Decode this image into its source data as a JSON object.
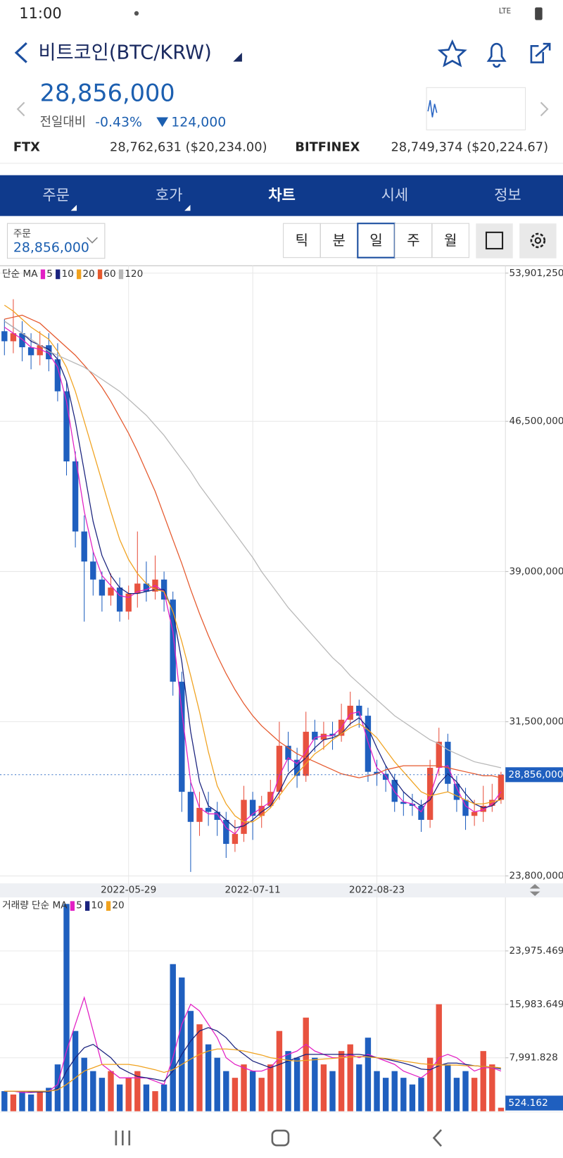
{
  "status_bar": {
    "time": "11:00",
    "network": "LTE"
  },
  "header": {
    "title": "비트코인(BTC/KRW)",
    "price": "28,856,000",
    "change_label": "전일대비",
    "change_percent": "-0.43%",
    "change_amount": "124,000"
  },
  "exchanges": [
    {
      "name": "FTX",
      "quote": "28,762,631 ($20,234.00)"
    },
    {
      "name": "BITFINEX",
      "quote": "28,749,374 ($20,224.67)"
    }
  ],
  "tabs": {
    "items": [
      "주문",
      "호가",
      "차트",
      "시세",
      "정보"
    ],
    "active": 2
  },
  "order_box": {
    "label": "주문",
    "price": "28,856,000"
  },
  "periods": {
    "items": [
      "틱",
      "분",
      "일",
      "주",
      "월"
    ],
    "active": 2
  },
  "chart_data": [
    {
      "type": "candlestick",
      "legend_title": "단순 MA",
      "grid": true,
      "up_color": "#e8523f",
      "down_color": "#1f5fbf",
      "categories": [
        null,
        null,
        null,
        null,
        null,
        null,
        null,
        null,
        null,
        null,
        null,
        null,
        null,
        null,
        "2022-05-29",
        null,
        null,
        null,
        null,
        null,
        null,
        null,
        null,
        null,
        null,
        null,
        null,
        null,
        "2022-07-11",
        null,
        null,
        null,
        null,
        null,
        null,
        null,
        null,
        null,
        null,
        null,
        null,
        null,
        "2022-08-23",
        null,
        null,
        null,
        null,
        null,
        null,
        null,
        null,
        null,
        null,
        null,
        null,
        null,
        null
      ],
      "open": [
        51000000,
        50500000,
        50900000,
        50200000,
        49800000,
        50300000,
        49600000,
        48000000,
        44500000,
        41000000,
        39500000,
        38600000,
        37800000,
        38200000,
        37000000,
        37900000,
        38400000,
        38000000,
        38600000,
        37600000,
        33500000,
        28000000,
        26500000,
        27200000,
        27000000,
        26600000,
        25400000,
        25900000,
        27600000,
        26800000,
        27300000,
        28000000,
        30300000,
        29600000,
        28800000,
        31000000,
        30600000,
        30900000,
        30800000,
        31600000,
        32300000,
        31800000,
        29000000,
        28900000,
        28600000,
        27500000,
        27400000,
        27300000,
        26600000,
        29200000,
        30500000,
        28400000,
        27600000,
        26800000,
        27000000,
        27300000,
        27600000
      ],
      "high": [
        51600000,
        52600000,
        51500000,
        50900000,
        51000000,
        50900000,
        50400000,
        48500000,
        45000000,
        41800000,
        40000000,
        39000000,
        38900000,
        38700000,
        38300000,
        41000000,
        39500000,
        39800000,
        39000000,
        38000000,
        34000000,
        28600000,
        28000000,
        28000000,
        27500000,
        27000000,
        26600000,
        28300000,
        28000000,
        27800000,
        28600000,
        31500000,
        31000000,
        30200000,
        32000000,
        31600000,
        31500000,
        31500000,
        32400000,
        33000000,
        32600000,
        32200000,
        29600000,
        29300000,
        28900000,
        28000000,
        27900000,
        27600000,
        29600000,
        31200000,
        30900000,
        28800000,
        28200000,
        27600000,
        28300000,
        28400000,
        29000000
      ],
      "low": [
        49800000,
        49900000,
        49500000,
        49100000,
        49300000,
        49000000,
        47500000,
        43800000,
        40200000,
        36500000,
        37800000,
        37000000,
        37300000,
        36500000,
        36600000,
        37200000,
        37500000,
        37600000,
        37000000,
        32800000,
        27000000,
        24000000,
        25800000,
        26300000,
        25800000,
        24700000,
        25000000,
        25500000,
        25600000,
        26200000,
        27200000,
        27600000,
        29000000,
        28200000,
        28500000,
        30000000,
        30100000,
        30100000,
        30500000,
        31300000,
        31200000,
        28500000,
        28300000,
        28000000,
        27000000,
        26800000,
        26800000,
        26000000,
        26200000,
        28800000,
        28000000,
        27000000,
        26100000,
        26300000,
        26500000,
        27000000,
        27400000
      ],
      "close": [
        50500000,
        50900000,
        50200000,
        49800000,
        50300000,
        49600000,
        48000000,
        44500000,
        41000000,
        39500000,
        38600000,
        37800000,
        38200000,
        37000000,
        37900000,
        38400000,
        38000000,
        38600000,
        37600000,
        33500000,
        28000000,
        26500000,
        27200000,
        27000000,
        26600000,
        25400000,
        25900000,
        27600000,
        26800000,
        27300000,
        28000000,
        30300000,
        29600000,
        28800000,
        31000000,
        30600000,
        30900000,
        30800000,
        31600000,
        32300000,
        31800000,
        29000000,
        28900000,
        28600000,
        27500000,
        27400000,
        27300000,
        26600000,
        29200000,
        30500000,
        28400000,
        27600000,
        26800000,
        27000000,
        27300000,
        27600000,
        28856000
      ],
      "current_label": "28,856,000",
      "series": [
        {
          "name": "5",
          "color": "#e21fc4",
          "values": [
            51200000,
            50900000,
            50600000,
            50200000,
            50100000,
            49900000,
            49200000,
            47500000,
            44800000,
            42000000,
            40000000,
            38800000,
            38300000,
            37800000,
            37700000,
            38000000,
            38100000,
            38300000,
            38000000,
            36000000,
            32000000,
            28500000,
            27200000,
            26900000,
            26900000,
            26200000,
            25900000,
            26500000,
            26900000,
            27200000,
            27500000,
            28800000,
            29700000,
            29400000,
            30000000,
            30700000,
            30800000,
            30800000,
            31200000,
            31900000,
            32000000,
            30500000,
            29200000,
            28800000,
            28000000,
            27500000,
            27400000,
            27000000,
            27800000,
            29200000,
            29300000,
            28200000,
            27300000,
            27000000,
            27100000,
            27400000,
            28000000
          ]
        },
        {
          "name": "10",
          "color": "#1a237e",
          "values": [
            51500000,
            51200000,
            50900000,
            50500000,
            50300000,
            50100000,
            49600000,
            48500000,
            46500000,
            44000000,
            41500000,
            39800000,
            38800000,
            38200000,
            37900000,
            37900000,
            38000000,
            38100000,
            38100000,
            37000000,
            34500000,
            31000000,
            28500000,
            27300000,
            27000000,
            26600000,
            26200000,
            26300000,
            26600000,
            27000000,
            27300000,
            28000000,
            28900000,
            29300000,
            29700000,
            30200000,
            30600000,
            30700000,
            30900000,
            31400000,
            31700000,
            31200000,
            30200000,
            29300000,
            28600000,
            28000000,
            27600000,
            27300000,
            27600000,
            28400000,
            28900000,
            28500000,
            27900000,
            27400000,
            27200000,
            27300000,
            27700000
          ]
        },
        {
          "name": "20",
          "color": "#f0a21e",
          "values": [
            52300000,
            52000000,
            51600000,
            51200000,
            50900000,
            50600000,
            50000000,
            49200000,
            48000000,
            46500000,
            45000000,
            43500000,
            42000000,
            40600000,
            39600000,
            38900000,
            38400000,
            38100000,
            38000000,
            37000000,
            35500000,
            33800000,
            32000000,
            30000000,
            28300000,
            27400000,
            26800000,
            26500000,
            26500000,
            26800000,
            27200000,
            27800000,
            28400000,
            28900000,
            29400000,
            29900000,
            30200000,
            30600000,
            30900000,
            31200000,
            31400000,
            31100000,
            30700000,
            30100000,
            29500000,
            29000000,
            28500000,
            28000000,
            27800000,
            27900000,
            28000000,
            27800000,
            27600000,
            27400000,
            27400000,
            27500000,
            27600000
          ]
        },
        {
          "name": "60",
          "color": "#e5582c",
          "values": [
            51600000,
            51700000,
            51800000,
            51600000,
            51400000,
            51000000,
            50600000,
            50200000,
            49800000,
            49300000,
            48800000,
            48200000,
            47500000,
            46700000,
            45900000,
            45000000,
            44000000,
            43000000,
            41800000,
            40600000,
            39400000,
            38100000,
            36900000,
            35800000,
            34800000,
            33900000,
            33100000,
            32400000,
            31800000,
            31300000,
            30900000,
            30500000,
            30200000,
            29900000,
            29700000,
            29500000,
            29300000,
            29100000,
            28900000,
            28800000,
            28700000,
            28800000,
            28900000,
            29100000,
            29200000,
            29300000,
            29300000,
            29300000,
            29300000,
            29300000,
            29200000,
            29100000,
            29000000,
            28900000,
            28800000,
            28800000,
            28700000
          ]
        },
        {
          "name": "120",
          "color": "#b8b8b8",
          "values": [
            51500000,
            51200000,
            50900000,
            50600000,
            50300000,
            50000000,
            49800000,
            49600000,
            49400000,
            49200000,
            48900000,
            48600000,
            48300000,
            48000000,
            47600000,
            47200000,
            46800000,
            46300000,
            45800000,
            45200000,
            44600000,
            44000000,
            43300000,
            42700000,
            42100000,
            41500000,
            40900000,
            40300000,
            39700000,
            39000000,
            38400000,
            37800000,
            37200000,
            36700000,
            36200000,
            35700000,
            35200000,
            34700000,
            34300000,
            33800000,
            33400000,
            33000000,
            32600000,
            32200000,
            31800000,
            31500000,
            31200000,
            30900000,
            30600000,
            30400000,
            30100000,
            29900000,
            29700000,
            29500000,
            29400000,
            29300000,
            29200000
          ]
        }
      ],
      "ylim": [
        23430000,
        54270000
      ],
      "yticks": [
        {
          "value": 23800000,
          "label": "23,800,000"
        },
        {
          "value": 31500000,
          "label": "31,500,000"
        },
        {
          "value": 39000000,
          "label": "39,000,000"
        },
        {
          "value": 46500000,
          "label": "46,500,000"
        },
        {
          "value": 53901250,
          "label": "53,901,250"
        }
      ]
    },
    {
      "type": "bar",
      "legend_title": "거래량 단순 MA",
      "grid": true,
      "values": [
        3000,
        2500,
        3000,
        2500,
        3000,
        3500,
        7000,
        31000,
        12000,
        8000,
        6000,
        5000,
        6000,
        4000,
        5000,
        6000,
        4000,
        3000,
        4000,
        22000,
        20000,
        15000,
        13000,
        10000,
        8000,
        6000,
        5000,
        7000,
        6000,
        5000,
        7000,
        12000,
        9000,
        8000,
        14000,
        8000,
        7000,
        6000,
        9000,
        10000,
        7000,
        11000,
        6000,
        5000,
        6000,
        5000,
        4000,
        5000,
        8000,
        16000,
        7000,
        5000,
        6000,
        5000,
        9000,
        7000,
        524.162
      ],
      "series": [
        {
          "name": "5",
          "color": "#e21fc4",
          "values": [
            3000,
            3000,
            2800,
            2800,
            2900,
            3000,
            4000,
            9000,
            13000,
            17000,
            12000,
            7000,
            6000,
            5000,
            5000,
            5000,
            5000,
            4500,
            4000,
            8000,
            13000,
            16000,
            15000,
            13000,
            11000,
            8000,
            7000,
            6500,
            6000,
            6000,
            6500,
            8000,
            8500,
            9000,
            10000,
            9000,
            8500,
            8000,
            8000,
            8500,
            8000,
            8500,
            8000,
            7500,
            7000,
            6000,
            5500,
            5000,
            6000,
            8000,
            8500,
            8000,
            7000,
            6000,
            6500,
            6500,
            6000
          ]
        },
        {
          "name": "10",
          "color": "#1a237e",
          "values": [
            3000,
            3000,
            3000,
            2900,
            2900,
            2900,
            3400,
            6000,
            8000,
            9500,
            10000,
            9000,
            8000,
            6500,
            5800,
            5200,
            5000,
            4800,
            4500,
            6000,
            8500,
            10500,
            12000,
            12500,
            12000,
            11000,
            9500,
            8500,
            7500,
            7000,
            6500,
            7000,
            7500,
            8000,
            8500,
            8500,
            8500,
            8500,
            8500,
            8500,
            8500,
            8300,
            8000,
            7800,
            7500,
            7200,
            6800,
            6300,
            6200,
            6800,
            7200,
            7200,
            7000,
            6800,
            6700,
            6600,
            6300
          ]
        },
        {
          "name": "20",
          "color": "#f0a21e",
          "values": [
            3000,
            3000,
            3000,
            3000,
            3000,
            3000,
            3200,
            4000,
            5000,
            6000,
            6500,
            7000,
            7000,
            7000,
            7000,
            6800,
            6500,
            6200,
            5800,
            6200,
            7000,
            7800,
            8500,
            9000,
            9300,
            9300,
            9200,
            9000,
            8700,
            8400,
            8000,
            7800,
            7600,
            7500,
            7600,
            7700,
            7800,
            7900,
            8000,
            8100,
            8200,
            8100,
            8000,
            7900,
            7700,
            7500,
            7300,
            7100,
            7000,
            6900,
            6900,
            6900,
            6800,
            6800,
            6700,
            6600,
            6500
          ]
        }
      ],
      "ylim": [
        0,
        31857
      ],
      "yticks": [
        {
          "value": 7991.828,
          "label": "7,991.828"
        },
        {
          "value": 15983.649,
          "label": "15,983.649"
        },
        {
          "value": 23975.469,
          "label": "23,975.469"
        }
      ]
    }
  ]
}
